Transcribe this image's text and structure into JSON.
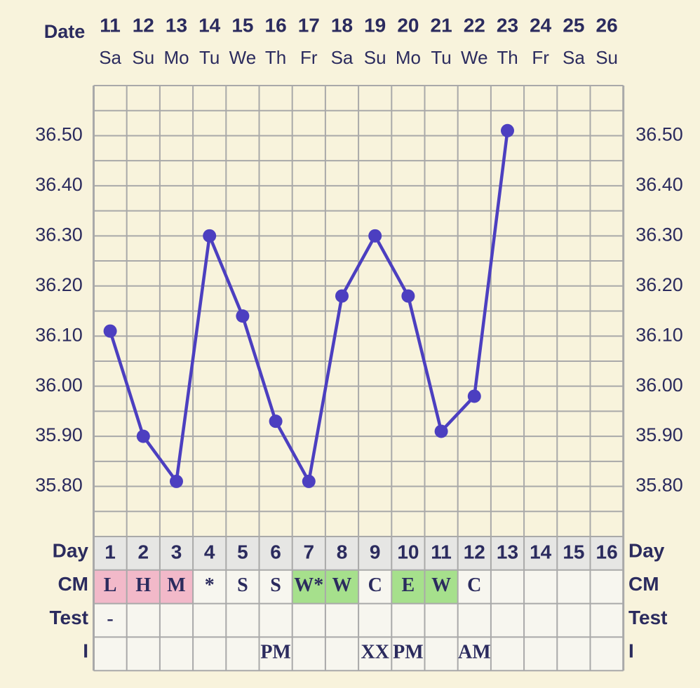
{
  "chart_data": {
    "type": "line",
    "header_label": "Date",
    "categories": [
      "11",
      "12",
      "13",
      "14",
      "15",
      "16",
      "17",
      "18",
      "19",
      "20",
      "21",
      "22",
      "23",
      "24",
      "25",
      "26"
    ],
    "weekdays": [
      "Sa",
      "Su",
      "Mo",
      "Tu",
      "We",
      "Th",
      "Fr",
      "Sa",
      "Su",
      "Mo",
      "Tu",
      "We",
      "Th",
      "Fr",
      "Sa",
      "Su"
    ],
    "series": [
      {
        "color": "#4c3fc0",
        "values": [
          36.11,
          35.9,
          35.81,
          36.3,
          36.14,
          35.93,
          35.81,
          36.18,
          36.3,
          36.18,
          35.91,
          35.98,
          36.51,
          null,
          null,
          null
        ]
      }
    ],
    "ylim": [
      35.7,
      36.6
    ],
    "yticks": [
      {
        "value": 35.8,
        "label": "35.80"
      },
      {
        "value": 35.9,
        "label": "35.90"
      },
      {
        "value": 36.0,
        "label": "36.00"
      },
      {
        "value": 36.1,
        "label": "36.10"
      },
      {
        "value": 36.2,
        "label": "36.20"
      },
      {
        "value": 36.3,
        "label": "36.30"
      },
      {
        "value": 36.4,
        "label": "36.40"
      },
      {
        "value": 36.5,
        "label": "36.50"
      }
    ],
    "minor_yticks": [
      35.7,
      35.75,
      35.85,
      35.95,
      36.05,
      36.15,
      36.25,
      36.35,
      36.45,
      36.55,
      36.6
    ],
    "grid": true,
    "rows": [
      {
        "label": "Day",
        "fill": "#e6e6e4",
        "values": [
          1,
          2,
          3,
          4,
          5,
          6,
          7,
          8,
          9,
          10,
          11,
          12,
          13,
          14,
          15,
          16
        ]
      },
      {
        "label": "CM",
        "values": [
          "L",
          "H",
          "M",
          "*",
          "S",
          "S",
          "W*",
          "W",
          "C",
          "E",
          "W",
          "C",
          null,
          null,
          null,
          null
        ],
        "colors": [
          "#f2b9c9",
          "#f2b9c9",
          "#f2b9c9",
          null,
          null,
          null,
          "#a6e08c",
          "#a6e08c",
          null,
          "#a6e08c",
          "#a6e08c",
          null,
          null,
          null,
          null,
          null
        ]
      },
      {
        "label": "Test",
        "values": [
          "-",
          null,
          null,
          null,
          null,
          null,
          null,
          null,
          null,
          null,
          null,
          null,
          null,
          null,
          null,
          null
        ]
      },
      {
        "label": "I",
        "values": [
          null,
          null,
          null,
          null,
          null,
          "PM",
          null,
          null,
          "XX",
          "PM",
          null,
          "AM",
          null,
          null,
          null,
          null
        ]
      }
    ]
  }
}
